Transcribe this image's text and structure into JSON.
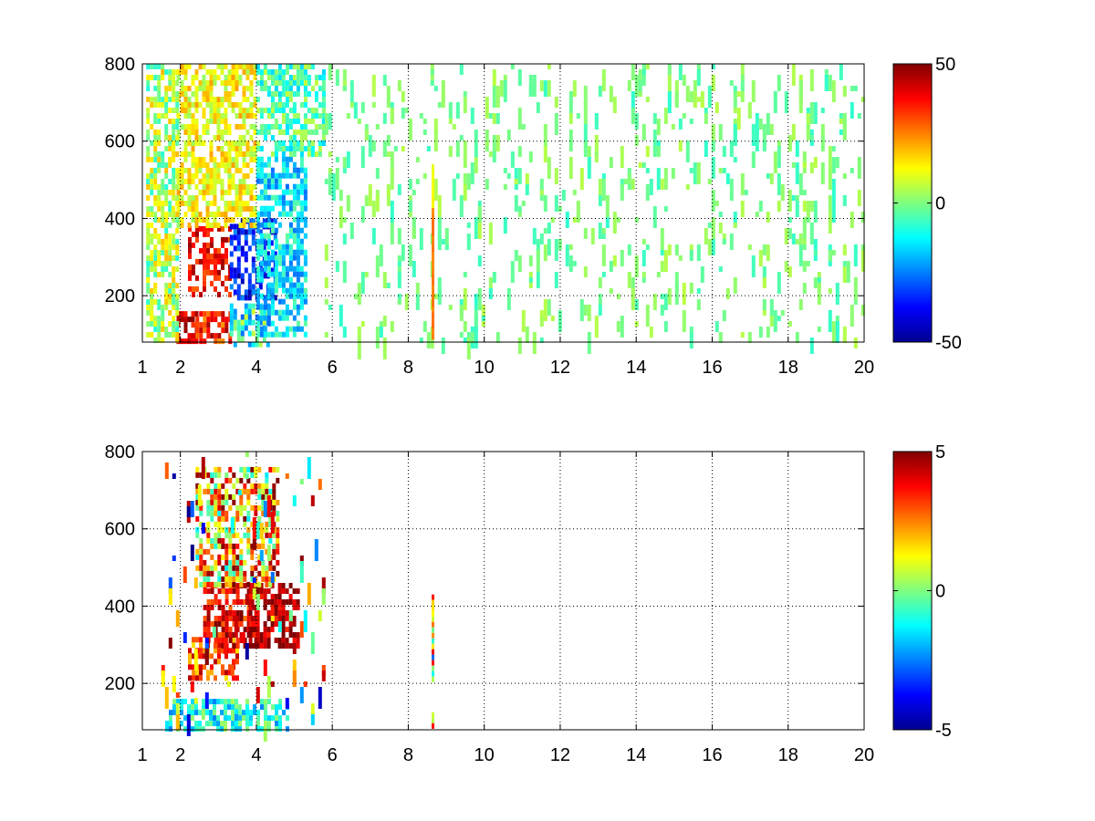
{
  "chart_data": [
    {
      "type": "heatmap",
      "title": "",
      "xlabel": "",
      "ylabel": "",
      "xlim": [
        1,
        20
      ],
      "ylim": [
        80,
        800
      ],
      "xticks": [
        1,
        2,
        4,
        6,
        8,
        10,
        12,
        14,
        16,
        18,
        20
      ],
      "yticks": [
        200,
        400,
        600,
        800
      ],
      "grid": true,
      "colormap": "jet",
      "clim": [
        -50,
        50
      ],
      "colorbar_ticks": [
        -50,
        0,
        50
      ],
      "seed": 11,
      "dense_features": [
        {
          "x": [
            1.9,
            2.4
          ],
          "y": [
            80,
            160
          ],
          "value": 42,
          "spread": 10
        },
        {
          "x": [
            2.4,
            3.3
          ],
          "y": [
            80,
            160
          ],
          "value": 35,
          "spread": 12
        },
        {
          "x": [
            3.3,
            4.3
          ],
          "y": [
            80,
            180
          ],
          "value": -10,
          "spread": 18
        },
        {
          "x": [
            2.2,
            3.3
          ],
          "y": [
            200,
            380
          ],
          "value": 38,
          "spread": 10
        },
        {
          "x": [
            3.3,
            4.5
          ],
          "y": [
            200,
            400
          ],
          "value": -35,
          "spread": 12
        },
        {
          "x": [
            4.0,
            5.3
          ],
          "y": [
            100,
            560
          ],
          "value": -15,
          "spread": 12
        },
        {
          "x": [
            1.9,
            4.0
          ],
          "y": [
            380,
            800
          ],
          "value": 12,
          "spread": 10
        },
        {
          "x": [
            4.0,
            5.8
          ],
          "y": [
            560,
            800
          ],
          "value": -5,
          "spread": 12
        },
        {
          "x": [
            1.1,
            1.9
          ],
          "y": [
            80,
            800
          ],
          "value": 5,
          "spread": 14
        }
      ],
      "line_features": [
        {
          "x": 8.65,
          "y": [
            90,
            440
          ],
          "value": 25,
          "width": 0.06
        },
        {
          "x": 8.65,
          "y": [
            440,
            540
          ],
          "value": 12,
          "width": 0.05
        }
      ],
      "scatter_region": {
        "x": [
          5.8,
          20
        ],
        "y": [
          80,
          800
        ],
        "density": 0.09,
        "values": [
          -8,
          6
        ]
      }
    },
    {
      "type": "heatmap",
      "title": "",
      "xlabel": "",
      "ylabel": "",
      "xlim": [
        1,
        20
      ],
      "ylim": [
        80,
        800
      ],
      "xticks": [
        1,
        2,
        4,
        6,
        8,
        10,
        12,
        14,
        16,
        18,
        20
      ],
      "yticks": [
        200,
        400,
        600,
        800
      ],
      "grid": true,
      "colormap": "jet",
      "clim": [
        -5,
        5
      ],
      "colorbar_ticks": [
        -5,
        0,
        5
      ],
      "seed": 29,
      "dense_features": [
        {
          "x": [
            1.6,
            4.8
          ],
          "y": [
            85,
            160
          ],
          "value": -1,
          "spread": 1.5
        },
        {
          "x": [
            2.2,
            3.5
          ],
          "y": [
            220,
            320
          ],
          "value": 3,
          "spread": 1.5
        },
        {
          "x": [
            2.6,
            4.0
          ],
          "y": [
            300,
            460
          ],
          "value": 4,
          "spread": 1.5
        },
        {
          "x": [
            3.8,
            5.1
          ],
          "y": [
            300,
            460
          ],
          "value": 4.5,
          "spread": 1.2
        },
        {
          "x": [
            2.4,
            4.6
          ],
          "y": [
            460,
            760
          ],
          "value": 2,
          "spread": 3.5
        }
      ],
      "line_features": [
        {
          "x": 8.65,
          "y": [
            205,
            430
          ],
          "value": 0,
          "width": 0.06,
          "spread": 4
        },
        {
          "x": 8.65,
          "y": [
            90,
            125
          ],
          "value": 0,
          "width": 0.06,
          "spread": 4
        }
      ],
      "scatter_region": {
        "x": [
          1.5,
          5.8
        ],
        "y": [
          80,
          800
        ],
        "density": 0.04,
        "values": [
          -5,
          5
        ]
      }
    }
  ]
}
